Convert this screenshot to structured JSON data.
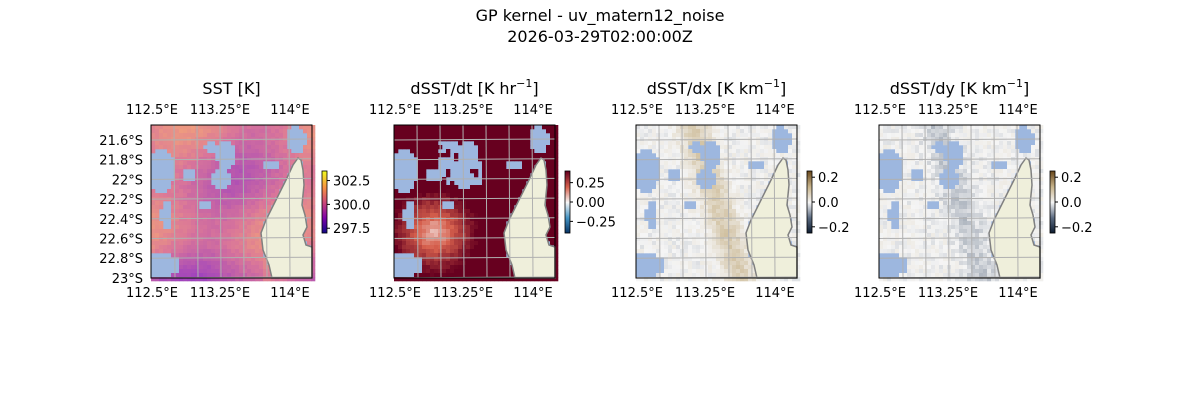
{
  "figure": {
    "title_line1": "GP kernel - uv_matern12_noise",
    "title_line2": "2026-03-29T02:00:00Z"
  },
  "chart_data": [
    {
      "type": "heatmap",
      "title": "SST [K]",
      "title_sup": "",
      "title_suffix": "",
      "xticks": [
        "112.5°E",
        "113.25°E",
        "114°E"
      ],
      "yticks": [
        "21.6°S",
        "21.8°S",
        "22°S",
        "22.2°S",
        "22.4°S",
        "22.6°S",
        "22.8°S",
        "23°S"
      ],
      "xlim": [
        112.5,
        114.25
      ],
      "ylim": [
        -23.0,
        -21.55
      ],
      "colorbar": {
        "ticks": [
          "302.5",
          "300.0",
          "297.5"
        ],
        "tick_values": [
          302.5,
          300.0,
          297.5
        ],
        "range": [
          297,
          303.5
        ],
        "cmap": [
          "#0d0887",
          "#7e03a8",
          "#cc4778",
          "#f89540",
          "#f0f921"
        ]
      },
      "value_range": [
        299.0,
        301.5
      ]
    },
    {
      "type": "heatmap",
      "title": "dSST/dt [K hr",
      "title_sup": "−1",
      "title_suffix": "]",
      "xticks": [
        "112.5°E",
        "113.25°E",
        "114°E"
      ],
      "yticks": [],
      "xlim": [
        112.5,
        114.25
      ],
      "ylim": [
        -23.0,
        -21.55
      ],
      "colorbar": {
        "ticks": [
          "0.25",
          "0.00",
          "−0.25"
        ],
        "tick_values": [
          0.25,
          0.0,
          -0.25
        ],
        "range": [
          -0.4,
          0.4
        ],
        "cmap": [
          "#053061",
          "#4393c3",
          "#f7f7f7",
          "#d6604d",
          "#67001f"
        ]
      },
      "value_range": [
        0.0,
        0.6
      ]
    },
    {
      "type": "heatmap",
      "title": "dSST/dx [K km",
      "title_sup": "−1",
      "title_suffix": "]",
      "xticks": [
        "112.5°E",
        "113.25°E",
        "114°E"
      ],
      "yticks": [],
      "xlim": [
        112.5,
        114.25
      ],
      "ylim": [
        -23.0,
        -21.55
      ],
      "colorbar": {
        "ticks": [
          "0.2",
          "0.0",
          "−0.2"
        ],
        "tick_values": [
          0.2,
          0.0,
          -0.2
        ],
        "range": [
          -0.25,
          0.25
        ],
        "cmap": [
          "#0b1a2e",
          "#5a6a80",
          "#f5f5f5",
          "#c8b48c",
          "#6b4a1e"
        ]
      },
      "value_range": [
        -0.05,
        0.12
      ]
    },
    {
      "type": "heatmap",
      "title": "dSST/dy [K km",
      "title_sup": "−1",
      "title_suffix": "]",
      "xticks": [
        "112.5°E",
        "113.25°E",
        "114°E"
      ],
      "yticks": [],
      "xlim": [
        112.5,
        114.25
      ],
      "ylim": [
        -23.0,
        -21.55
      ],
      "colorbar": {
        "ticks": [
          "0.2",
          "0.0",
          "−0.2"
        ],
        "tick_values": [
          0.2,
          0.0,
          -0.2
        ],
        "range": [
          -0.25,
          0.25
        ],
        "cmap": [
          "#0b1a2e",
          "#5a6a80",
          "#f5f5f5",
          "#c8b48c",
          "#6b4a1e"
        ]
      },
      "value_range": [
        -0.08,
        0.08
      ]
    }
  ],
  "colors": {
    "ocean_mask": "#9db7df",
    "land": "#efefdb",
    "coast": "#808080",
    "grid": "#b0b0b0"
  }
}
